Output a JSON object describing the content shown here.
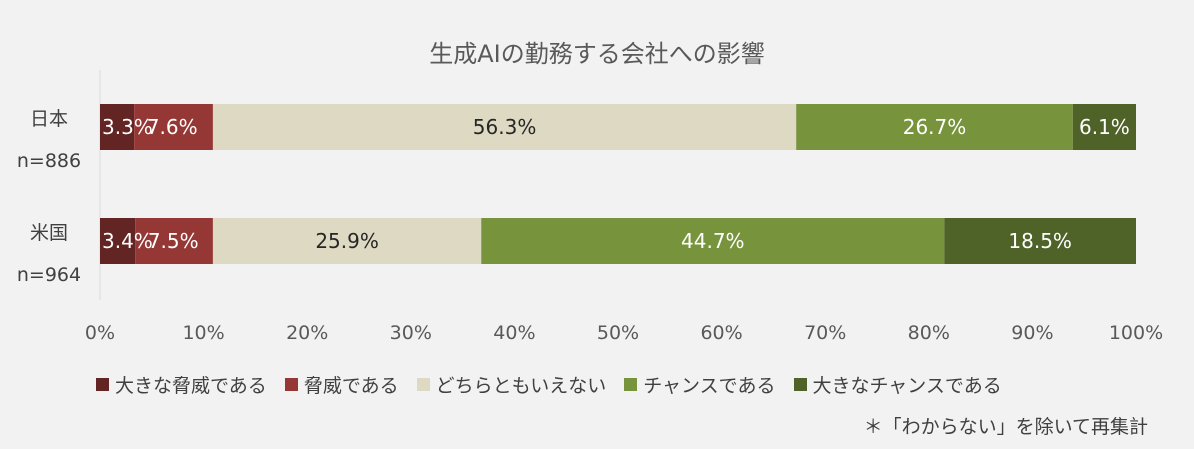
{
  "chart_data": {
    "type": "bar",
    "orientation": "horizontal",
    "stacked": true,
    "title": "生成AIの勤務する会社への影響",
    "categories": [
      {
        "name": "日本",
        "n": "n=886"
      },
      {
        "name": "米国",
        "n": "n=964"
      }
    ],
    "series": [
      {
        "name": "大きな脅威である",
        "color": "#632523",
        "label_color": "#ffffff",
        "values": [
          3.3,
          3.4
        ],
        "labels": [
          "3.3%",
          "3.4%"
        ]
      },
      {
        "name": "脅威である",
        "color": "#953735",
        "label_color": "#ffffff",
        "values": [
          7.6,
          7.5
        ],
        "labels": [
          "7.6%",
          "7.5%"
        ]
      },
      {
        "name": "どちらともいえない",
        "color": "#ddd9c3",
        "label_color": "#262626",
        "values": [
          56.3,
          25.9
        ],
        "labels": [
          "56.3%",
          "25.9%"
        ]
      },
      {
        "name": "チャンスである",
        "color": "#77933c",
        "label_color": "#ffffff",
        "values": [
          26.7,
          44.7
        ],
        "labels": [
          "26.7%",
          "44.7%"
        ]
      },
      {
        "name": "大きなチャンスである",
        "color": "#4f6228",
        "label_color": "#ffffff",
        "values": [
          6.1,
          18.5
        ],
        "labels": [
          "6.1%",
          "18.5%"
        ]
      }
    ],
    "xlim": [
      0,
      100
    ],
    "xticks": [
      "0%",
      "10%",
      "20%",
      "30%",
      "40%",
      "50%",
      "60%",
      "70%",
      "80%",
      "90%",
      "100%"
    ],
    "grid": false,
    "legend_position": "bottom"
  },
  "note": "＊「わからない」を除いて再集計"
}
